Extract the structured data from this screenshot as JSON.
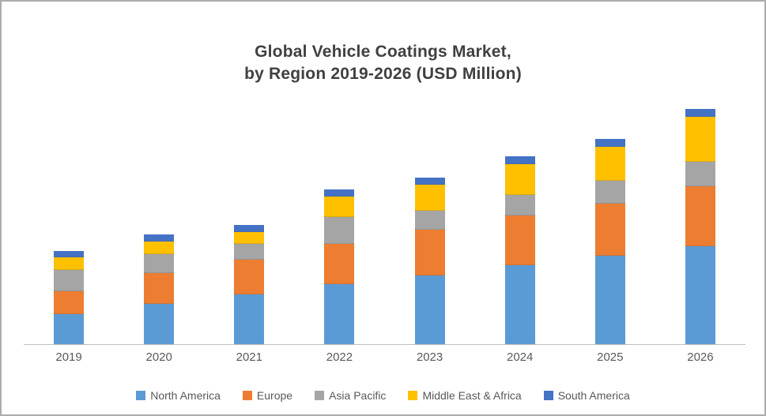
{
  "title": {
    "line1": "Global Vehicle Coatings Market,",
    "line2": "by Region 2019-2026 (USD Million)"
  },
  "chart_data": {
    "type": "bar",
    "stacked": true,
    "title": "Global Vehicle Coatings Market, by Region 2019-2026 (USD Million)",
    "xlabel": "",
    "ylabel": "",
    "categories": [
      "2019",
      "2020",
      "2021",
      "2022",
      "2023",
      "2024",
      "2025",
      "2026"
    ],
    "series": [
      {
        "name": "North America",
        "color": "#5B9BD5",
        "values": [
          390,
          520,
          650,
          780,
          890,
          1030,
          1150,
          1270
        ]
      },
      {
        "name": "Europe",
        "color": "#ED7D31",
        "values": [
          300,
          400,
          450,
          520,
          590,
          650,
          680,
          780
        ]
      },
      {
        "name": "Asia Pacific",
        "color": "#A5A5A5",
        "values": [
          280,
          250,
          200,
          350,
          250,
          270,
          300,
          320
        ]
      },
      {
        "name": "Middle East & Africa",
        "color": "#FFC000",
        "values": [
          160,
          160,
          150,
          270,
          340,
          400,
          440,
          580
        ]
      },
      {
        "name": "South America",
        "color": "#4472C4",
        "values": [
          80,
          90,
          90,
          90,
          90,
          100,
          100,
          100
        ]
      }
    ],
    "ylim": [
      0,
      3200
    ],
    "grid": false,
    "y_axis_labels": false,
    "legend_position": "bottom"
  }
}
